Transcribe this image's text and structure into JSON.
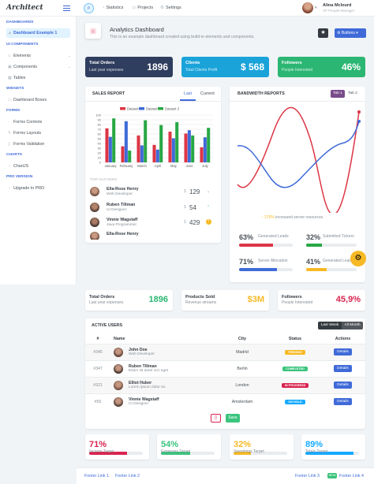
{
  "app": {
    "logo": "Architect"
  },
  "header": {
    "nav": [
      "Statistics",
      "Projects",
      "Settings"
    ],
    "user_name": "Alina Mclourd",
    "user_role": "VP People Manager"
  },
  "sidebar": {
    "dashboards_heading": "DASHBOARDS",
    "dashboard_item": "Dashboard Example 1",
    "ui_heading": "UI COMPONENTS",
    "ui_items": [
      "Elements",
      "Components",
      "Tables"
    ],
    "widgets_heading": "WIDGETS",
    "widgets_item": "Dashboard Boxes",
    "forms_heading": "FORMS",
    "forms_items": [
      "Forms Controls",
      "Forms Layouts",
      "Forms Validation"
    ],
    "charts_heading": "CHARTS",
    "charts_item": "ChartJS",
    "pro_heading": "PRO VERSION",
    "pro_item": "Upgrade to PRO"
  },
  "page": {
    "title": "Analytics Dashboard",
    "subtitle": "This is an example dashboard created using build-in elements and components.",
    "buttons_label": "Buttons"
  },
  "stats_top": [
    {
      "title": "Total Orders",
      "sub": "Last year expenses",
      "value": "1896",
      "color": "#2f3d5e"
    },
    {
      "title": "Clients",
      "sub": "Total Clients Profit",
      "value": "$ 568",
      "color": "#1aa3d9"
    },
    {
      "title": "Followers",
      "sub": "People Interested",
      "value": "46%",
      "color": "#2bb673"
    }
  ],
  "sales": {
    "title": "SALES REPORT",
    "tabs": [
      "Last",
      "Current"
    ],
    "top_authors_label": "TOP AUTHORS"
  },
  "chart_data": {
    "type": "bar",
    "categories": [
      "January",
      "February",
      "March",
      "April",
      "May",
      "June",
      "July"
    ],
    "series": [
      {
        "name": "Dataset 1",
        "color": "#dc3545",
        "values": [
          72,
          34,
          57,
          37,
          65,
          61,
          32
        ]
      },
      {
        "name": "Dataset 2",
        "color": "#3f6ad8",
        "values": [
          54,
          87,
          36,
          27,
          51,
          68,
          53
        ]
      },
      {
        "name": "Dataset 3",
        "color": "#28a745",
        "values": [
          93,
          25,
          89,
          79,
          85,
          57,
          73
        ]
      }
    ],
    "yticks": [
      "100",
      "90",
      "80",
      "70",
      "60",
      "50",
      "40",
      "30",
      "20",
      "10",
      "0"
    ],
    "ylim": [
      0,
      100
    ]
  },
  "authors": [
    {
      "name": "Ella-Rose Henry",
      "role": "Web Developer",
      "value": "129",
      "dir": "down",
      "color": "#6b4a3a"
    },
    {
      "name": "Ruben Tillman",
      "role": "UI Designer",
      "value": "54",
      "dir": "up",
      "color": "#4a3a30"
    },
    {
      "name": "Vinnie Wagstaff",
      "role": "Java Programmer",
      "value": "429",
      "dir": "warn",
      "color": "#3b2e2a"
    },
    {
      "name": "Ella-Rose Henry",
      "role": "",
      "value": "",
      "dir": "",
      "color": "#5a3d33"
    }
  ],
  "bandwidth": {
    "title": "BANDWIDTH REPORTS",
    "tabs": [
      "Tab 1",
      "Tab 2"
    ],
    "increase_pct": "176%",
    "increase_label": "increased server resources",
    "metrics": [
      {
        "value": "63%",
        "label": "Generated Leads",
        "color": "#dc3545",
        "pct": 63
      },
      {
        "value": "32%",
        "label": "Submitted Tickers",
        "color": "#28a745",
        "pct": 32
      },
      {
        "value": "71%",
        "label": "Server Allocation",
        "color": "#3f6ad8",
        "pct": 71
      },
      {
        "value": "41%",
        "label": "Generated Leads",
        "color": "#f7b924",
        "pct": 41
      }
    ]
  },
  "stats_mid": [
    {
      "title": "Total Orders",
      "sub": "Last year expenses",
      "value": "1896",
      "color": "#2bb673"
    },
    {
      "title": "Products Sold",
      "sub": "Revenue streams",
      "value": "$3M",
      "color": "#f7b924"
    },
    {
      "title": "Followers",
      "sub": "People Interested",
      "value": "45,9%",
      "color": "#d92550"
    }
  ],
  "users": {
    "title": "ACTIVE USERS",
    "toggle": [
      "Last Week",
      "All Month"
    ],
    "columns": [
      "#",
      "Name",
      "City",
      "Status",
      "Actions"
    ],
    "rows": [
      {
        "id": "#345",
        "name": "John Doe",
        "role": "Web Developer",
        "city": "Madrid",
        "status": "PENDING",
        "scolor": "#f7b924",
        "action": "Details",
        "av": "#5a3d33"
      },
      {
        "id": "#347",
        "name": "Ruben Tillman",
        "role": "Etiam sit amet orci eget",
        "city": "Berlin",
        "status": "COMPLETED",
        "scolor": "#3ac47d",
        "action": "Details",
        "av": "#3b2e2a"
      },
      {
        "id": "#321",
        "name": "Elliot Huber",
        "role": "Lorem ipsum dolor sic",
        "city": "London",
        "status": "IN PROGRESS",
        "scolor": "#d92550",
        "action": "Details",
        "av": "#6b4a3a"
      },
      {
        "id": "#55",
        "name": "Vinnie Wagstaff",
        "role": "UI Designer",
        "city": "Amsterdam",
        "status": "ON HOLD",
        "scolor": "#16aaff",
        "action": "Details",
        "av": "#4a3a30"
      }
    ],
    "delete_icon": "trash-icon",
    "save_label": "Save"
  },
  "bottom": [
    {
      "value": "71%",
      "label": "Income Target",
      "color": "#d92550",
      "pct": 71
    },
    {
      "value": "54%",
      "label": "Expenses Target",
      "color": "#3ac47d",
      "pct": 54
    },
    {
      "value": "32%",
      "label": "Spendings Target",
      "color": "#f7b924",
      "pct": 32
    },
    {
      "value": "89%",
      "label": "Totals Target",
      "color": "#16aaff",
      "pct": 89
    }
  ],
  "footer": {
    "left": [
      "Footer Link 1",
      "Footer Link 2"
    ],
    "right": [
      "Footer Link 3",
      "Footer Link 4"
    ],
    "badge": "NEW"
  }
}
